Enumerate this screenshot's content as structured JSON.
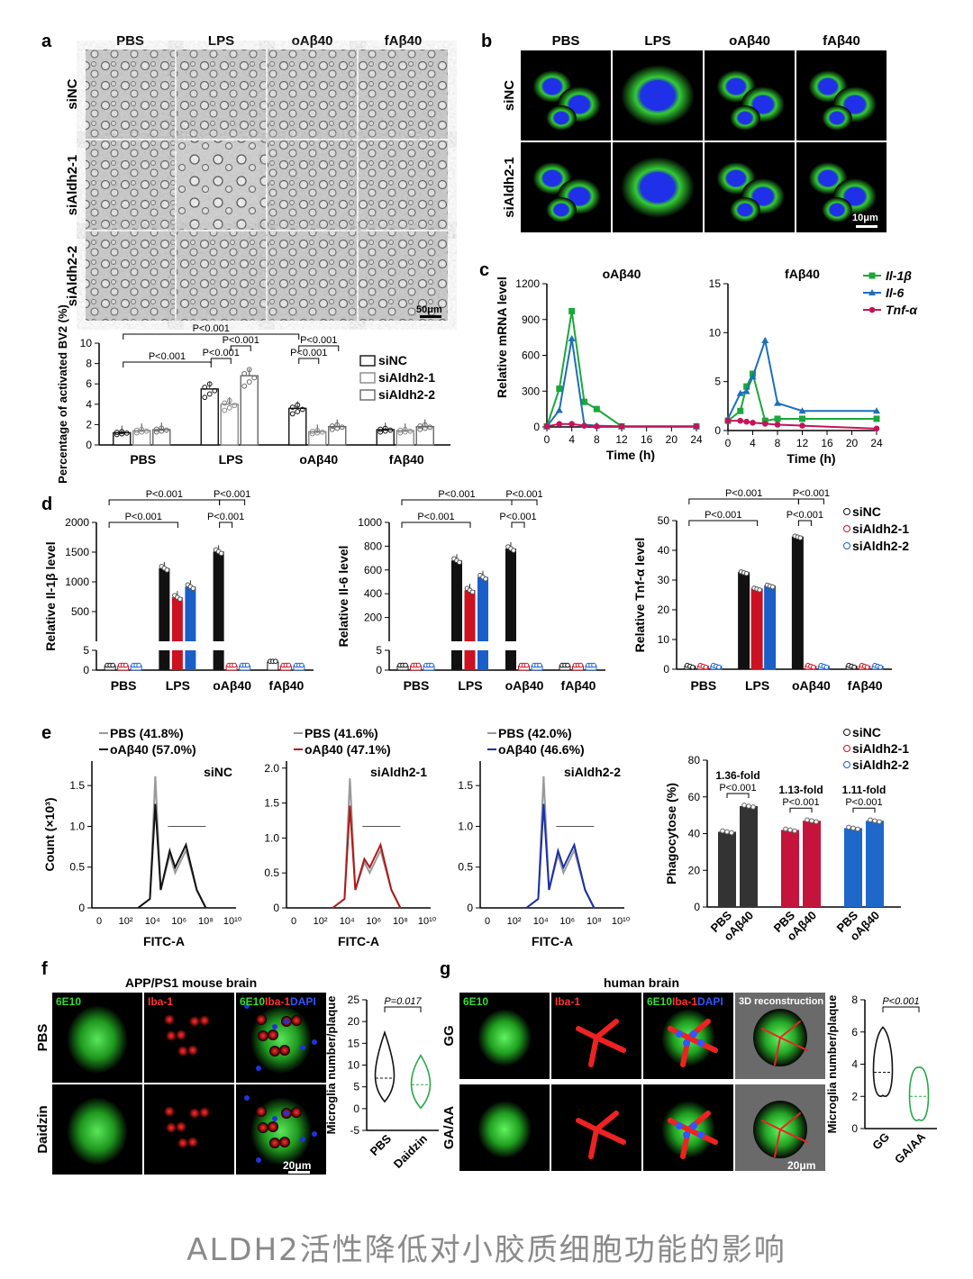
{
  "caption": "ALDH2活性降低对小胶质细胞功能的影响",
  "panel_a": {
    "letter": "a",
    "columns": [
      "PBS",
      "LPS",
      "oAβ40",
      "fAβ40"
    ],
    "rows": [
      "siNC",
      "siAldh2-1",
      "siAldh2-2"
    ],
    "scale_bar": "50μm",
    "ylabel": "Percentage of activated BV2 (%)",
    "legend": [
      "siNC",
      "siAldh2-1",
      "siAldh2-2"
    ],
    "pvalues": [
      "P<0.001",
      "P<0.001",
      "P<0.001",
      "P<0.001",
      "P<0.001",
      "P<0.001"
    ]
  },
  "panel_b": {
    "letter": "b",
    "columns": [
      "PBS",
      "LPS",
      "oAβ40",
      "fAβ40"
    ],
    "rows": [
      "siNC",
      "siAldh2-1"
    ],
    "scale_bar": "10μm"
  },
  "panel_c": {
    "letter": "c",
    "ylabel": "Relative mRNA level",
    "xlabel": "Time (h)",
    "legend": [
      "Il-1β",
      "Il-6",
      "Tnf-α"
    ]
  },
  "panel_d": {
    "letter": "d",
    "legend": [
      "siNC",
      "siAldh2-1",
      "siAldh2-2"
    ],
    "pvalue": "P<0.001"
  },
  "panel_e": {
    "letter": "e",
    "xlabel": "FITC-A",
    "ylabel": "Count (×10³)",
    "legend": [
      "siNC",
      "siAldh2-1",
      "siAldh2-2"
    ],
    "folds": [
      "1.36-fold",
      "1.13-fold",
      "1.11-fold"
    ],
    "pvalue": "P<0.001",
    "phago_ylabel": "Phagocytose (%)",
    "phago_xcats": [
      "PBS",
      "oAβ40"
    ]
  },
  "panel_f": {
    "letter": "f",
    "title": "APP/PS1 mouse brain",
    "stains": [
      "6E10",
      "Iba-1",
      "DAPI"
    ],
    "rows": [
      "PBS",
      "Daidzin"
    ],
    "scale_bar": "20μm",
    "ylabel": "Microglia number/plaque",
    "pvalue": "P=0.017",
    "cats": [
      "PBS",
      "Daidzin"
    ]
  },
  "panel_g": {
    "letter": "g",
    "title": "human brain",
    "stains": [
      "6E10",
      "Iba-1",
      "DAPI"
    ],
    "recon": "3D reconstruction",
    "rows": [
      "GG",
      "GA/AA"
    ],
    "scale_bar": "20μm",
    "ylabel": "Microglia number/plaque",
    "pvalue": "P<0.001",
    "cats": [
      "GG",
      "GA/AA"
    ]
  },
  "chart_data": [
    {
      "id": "a_bar",
      "type": "bar",
      "categories": [
        "PBS",
        "LPS",
        "oAβ40",
        "fAβ40"
      ],
      "ylabel": "Percentage of activated BV2 (%)",
      "ylim": [
        0,
        10
      ],
      "legend": "top-right",
      "series": [
        {
          "name": "siNC",
          "values": [
            1.2,
            5.5,
            3.6,
            1.5
          ]
        },
        {
          "name": "siAldh2-1",
          "values": [
            1.4,
            4.0,
            1.3,
            1.4
          ]
        },
        {
          "name": "siAldh2-2",
          "values": [
            1.5,
            6.8,
            1.8,
            1.8
          ]
        }
      ]
    },
    {
      "id": "c_oab",
      "type": "line",
      "title": "oAβ40",
      "xlabel": "Time (h)",
      "ylabel": "Relative mRNA level",
      "ylim": [
        0,
        1200
      ],
      "x": [
        0,
        2,
        4,
        6,
        8,
        12,
        24
      ],
      "series": [
        {
          "name": "Il-1β",
          "values": [
            5,
            320,
            970,
            210,
            150,
            5,
            5
          ]
        },
        {
          "name": "Il-6",
          "values": [
            5,
            140,
            740,
            20,
            10,
            5,
            5
          ]
        },
        {
          "name": "Tnf-α",
          "values": [
            5,
            25,
            25,
            10,
            5,
            5,
            5
          ]
        }
      ]
    },
    {
      "id": "c_fab",
      "type": "line",
      "title": "fAβ40",
      "xlabel": "Time (h)",
      "ylim": [
        0,
        15
      ],
      "x": [
        0,
        2,
        3,
        4,
        6,
        8,
        12,
        24
      ],
      "series": [
        {
          "name": "Il-1β",
          "values": [
            1.0,
            2.0,
            4.5,
            5.8,
            1.0,
            1.2,
            1.2,
            1.2
          ]
        },
        {
          "name": "Il-6",
          "values": [
            1.2,
            3.8,
            4.0,
            5.5,
            9.2,
            2.8,
            2.0,
            2.0
          ]
        },
        {
          "name": "Tnf-α",
          "values": [
            1.0,
            1.0,
            0.9,
            0.8,
            0.7,
            0.6,
            0.5,
            0.2
          ]
        }
      ]
    },
    {
      "id": "d_il1b",
      "type": "bar",
      "ylabel": "Relative Il-1β level",
      "categories": [
        "PBS",
        "LPS",
        "oAβ40",
        "fAβ40"
      ],
      "series": [
        {
          "name": "siNC",
          "values": [
            1,
            1230,
            1510,
            2
          ]
        },
        {
          "name": "siAldh2-1",
          "values": [
            1,
            740,
            1,
            1
          ]
        },
        {
          "name": "siAldh2-2",
          "values": [
            1,
            920,
            1,
            1
          ]
        }
      ]
    },
    {
      "id": "d_il6",
      "type": "bar",
      "ylabel": "Relative Il-6 level",
      "categories": [
        "PBS",
        "LPS",
        "oAβ40",
        "fAβ40"
      ],
      "series": [
        {
          "name": "siNC",
          "values": [
            1,
            680,
            780,
            1
          ]
        },
        {
          "name": "siAldh2-1",
          "values": [
            1,
            430,
            1,
            1
          ]
        },
        {
          "name": "siAldh2-2",
          "values": [
            1,
            540,
            1,
            1
          ]
        }
      ]
    },
    {
      "id": "d_tnf",
      "type": "bar",
      "ylabel": "Relative Tnf-α level",
      "categories": [
        "PBS",
        "LPS",
        "oAβ40",
        "fAβ40"
      ],
      "ylim": [
        0,
        50
      ],
      "series": [
        {
          "name": "siNC",
          "values": [
            1,
            32.5,
            44.5,
            1
          ]
        },
        {
          "name": "siAldh2-1",
          "values": [
            1,
            27,
            1,
            1
          ]
        },
        {
          "name": "siAldh2-2",
          "values": [
            1,
            28,
            1,
            1
          ]
        }
      ]
    },
    {
      "id": "e_hist",
      "type": "line",
      "xlabel": "FITC-A",
      "ylabel": "Count (×10³)",
      "panels": [
        {
          "label": "siNC",
          "legend": [
            "PBS (41.8%)",
            "oAβ40 (57.0%)"
          ],
          "ylim": [
            0,
            1.8
          ]
        },
        {
          "label": "siAldh2-1",
          "legend": [
            "PBS (41.6%)",
            "oAβ40 (47.1%)"
          ],
          "ylim": [
            0,
            2.1
          ]
        },
        {
          "label": "siAldh2-2",
          "legend": [
            "PBS (42.0%)",
            "oAβ40 (46.6%)"
          ],
          "ylim": [
            0,
            1.8
          ]
        }
      ]
    },
    {
      "id": "e_phago",
      "type": "bar",
      "ylabel": "Phagocytose (%)",
      "ylim": [
        0,
        80
      ],
      "series": [
        {
          "name": "siNC",
          "values": [
            41,
            55
          ]
        },
        {
          "name": "siAldh2-1",
          "values": [
            42,
            47
          ]
        },
        {
          "name": "siAldh2-2",
          "values": [
            43,
            47
          ]
        }
      ]
    },
    {
      "id": "f_violin",
      "type": "violin",
      "ylabel": "Microglia number/plaque",
      "categories": [
        "PBS",
        "Daidzin"
      ],
      "ylim": [
        -5,
        25
      ],
      "medians": [
        7,
        5.5
      ]
    },
    {
      "id": "g_violin",
      "type": "violin",
      "ylabel": "Microglia number/plaque",
      "categories": [
        "GG",
        "GA/AA"
      ],
      "ylim": [
        0,
        8
      ],
      "medians": [
        3.5,
        2
      ]
    }
  ]
}
